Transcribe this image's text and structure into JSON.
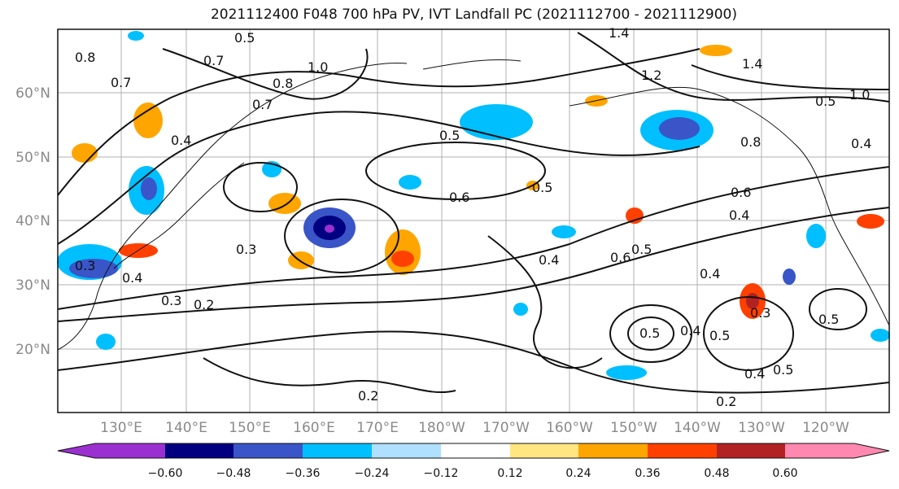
{
  "title": "2021112400 F048 700 hPa PV, IVT Landfall PC (2021112700 - 2021112900)",
  "map": {
    "lat_labels": [
      "60°N",
      "50°N",
      "40°N",
      "30°N",
      "20°N"
    ],
    "lon_labels": [
      "130°E",
      "140°E",
      "150°E",
      "160°E",
      "170°E",
      "180°W",
      "170°W",
      "160°W",
      "150°W",
      "140°W",
      "130°W",
      "120°W"
    ],
    "contour_labels": [
      "0.8",
      "0.7",
      "0.4",
      "0.5",
      "0.7",
      "0.8",
      "1.0",
      "0.7",
      "1.4",
      "1.4",
      "1.2",
      "0.5",
      "1.0",
      "0.4",
      "0.5",
      "0.6",
      "0.5",
      "0.4",
      "0.3",
      "0.3",
      "0.6",
      "0.5",
      "0.4",
      "0.4",
      "0.3",
      "0.2",
      "0.5",
      "0.4",
      "0.5",
      "0.5",
      "0.4",
      "0.5",
      "0.2",
      "0.2",
      "0.3",
      "0.6",
      "0.8",
      "0.4"
    ]
  },
  "colorbar": {
    "ticks": [
      "−0.60",
      "−0.48",
      "−0.36",
      "−0.24",
      "−0.12",
      "0.12",
      "0.24",
      "0.36",
      "0.48",
      "0.60"
    ],
    "colors": [
      "#9b30d0",
      "#000080",
      "#3a55c8",
      "#00bfff",
      "#b0e0ff",
      "#ffffff",
      "#ffe680",
      "#ffa500",
      "#ff4000",
      "#b22222",
      "#ff88b0"
    ]
  }
}
